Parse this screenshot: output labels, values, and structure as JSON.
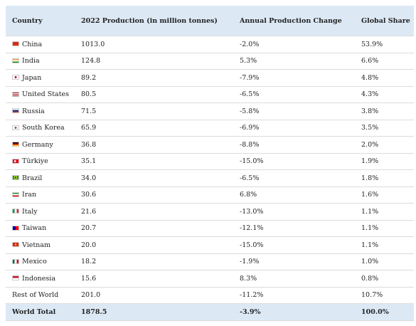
{
  "table": {
    "header": [
      "Country",
      "2022 Production (in million tonnes)",
      "Annual Production Change",
      "Global Share"
    ],
    "rows": [
      [
        "China",
        "1013.0",
        "-2.0%",
        "53.9%"
      ],
      [
        "India",
        "124.8",
        "5.3%",
        "6.6%"
      ],
      [
        "Japan",
        "89.2",
        "-7.9%",
        "4.8%"
      ],
      [
        "United States",
        "80.5",
        "-6.5%",
        "4.3%"
      ],
      [
        "Russia",
        "71.5",
        "-5.8%",
        "3.8%"
      ],
      [
        "South Korea",
        "65.9",
        "-6.9%",
        "3.5%"
      ],
      [
        "Germany",
        "36.8",
        "-8.8%",
        "2.0%"
      ],
      [
        "Türkiye",
        "35.1",
        "-15.0%",
        "1.9%"
      ],
      [
        "Brazil",
        "34.0",
        "-6.5%",
        "1.8%"
      ],
      [
        "Iran",
        "30.6",
        "6.8%",
        "1.6%"
      ],
      [
        "Italy",
        "21.6",
        "-13.0%",
        "1.1%"
      ],
      [
        "Taiwan",
        "20.7",
        "-12.1%",
        "1.1%"
      ],
      [
        "Vietnam",
        "20.0",
        "-15.0%",
        "1.1%"
      ],
      [
        "Mexico",
        "18.2",
        "-1.9%",
        "1.0%"
      ],
      [
        "Indonesia",
        "15.6",
        "8.3%",
        "0.8%"
      ],
      [
        "Rest of World",
        "201.0",
        "-11.2%",
        "10.7%"
      ]
    ],
    "total": [
      "World Total",
      "1878.5",
      "-3.9%",
      "100.0%"
    ]
  }
}
